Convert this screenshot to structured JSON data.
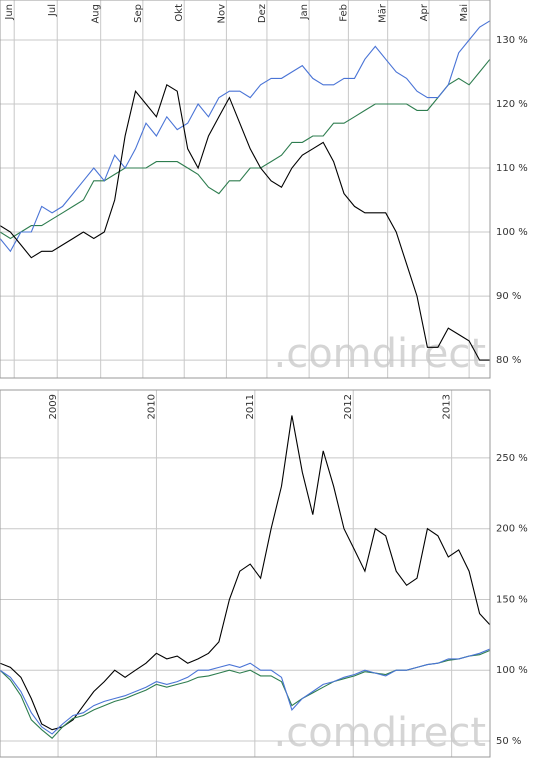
{
  "chart_data": [
    {
      "type": "line",
      "watermark": ".comdirect",
      "grid": true,
      "xlim": [
        0,
        11.73
      ],
      "ylim": [
        77.2,
        136.25
      ],
      "xticks": [
        {
          "value": 0.34,
          "label": "Jun"
        },
        {
          "value": 1.37,
          "label": "Jul"
        },
        {
          "value": 2.41,
          "label": "Aug"
        },
        {
          "value": 3.42,
          "label": "Sep"
        },
        {
          "value": 4.41,
          "label": "Okt"
        },
        {
          "value": 5.42,
          "label": "Nov"
        },
        {
          "value": 6.39,
          "label": "Dez"
        },
        {
          "value": 7.4,
          "label": "Jan"
        },
        {
          "value": 8.34,
          "label": "Feb"
        },
        {
          "value": 9.28,
          "label": "Mär"
        },
        {
          "value": 10.27,
          "label": "Apr"
        },
        {
          "value": 11.23,
          "label": "Mai"
        }
      ],
      "yticks": [
        {
          "value": 80,
          "label": "80 %"
        },
        {
          "value": 90,
          "label": "90 %"
        },
        {
          "value": 100,
          "label": "100 %"
        },
        {
          "value": 110,
          "label": "110 %"
        },
        {
          "value": 120,
          "label": "120 %"
        },
        {
          "value": 130,
          "label": "130 %"
        }
      ],
      "series": [
        {
          "color": "#2e7d4f",
          "values": [
            100,
            99,
            100,
            101,
            101,
            102,
            103,
            104,
            105,
            108,
            108,
            109,
            110,
            110,
            110,
            111,
            111,
            111,
            110,
            109,
            107,
            106,
            108,
            108,
            110,
            110,
            111,
            112,
            114,
            114,
            115,
            115,
            117,
            117,
            118,
            119,
            120,
            120,
            120,
            120,
            119,
            119,
            121,
            123,
            124,
            123,
            125,
            127
          ]
        },
        {
          "color": "#4a74d6",
          "values": [
            99,
            97,
            100,
            100,
            104,
            103,
            104,
            106,
            108,
            110,
            108,
            112,
            110,
            113,
            117,
            115,
            118,
            116,
            117,
            120,
            118,
            121,
            122,
            122,
            121,
            123,
            124,
            124,
            125,
            126,
            124,
            123,
            123,
            124,
            124,
            127,
            129,
            127,
            125,
            124,
            122,
            121,
            121,
            123,
            128,
            130,
            132,
            133
          ]
        },
        {
          "color": "#000000",
          "values": [
            101,
            100,
            98,
            96,
            97,
            97,
            98,
            99,
            100,
            99,
            100,
            105,
            115,
            122,
            120,
            118,
            123,
            122,
            113,
            110,
            115,
            118,
            121,
            117,
            113,
            110,
            108,
            107,
            110,
            112,
            113,
            114,
            111,
            106,
            104,
            103,
            103,
            103,
            100,
            95,
            90,
            82,
            82,
            85,
            84,
            83,
            80,
            80
          ]
        }
      ]
    },
    {
      "type": "line",
      "watermark": ".comdirect",
      "grid": true,
      "xlim": [
        2008.41,
        2013.39
      ],
      "ylim": [
        38.7,
        298
      ],
      "xticks": [
        2009,
        2010,
        2011,
        2012,
        2013
      ],
      "yticks": [
        {
          "value": 50,
          "label": "50 %"
        },
        {
          "value": 100,
          "label": "100 %"
        },
        {
          "value": 150,
          "label": "150 %"
        },
        {
          "value": 200,
          "label": "200 %"
        },
        {
          "value": 250,
          "label": "250 %"
        }
      ],
      "series": [
        {
          "color": "#000000",
          "values": [
            105,
            102,
            95,
            80,
            62,
            58,
            60,
            65,
            75,
            85,
            92,
            100,
            95,
            100,
            105,
            112,
            108,
            110,
            105,
            108,
            112,
            120,
            150,
            170,
            175,
            165,
            200,
            230,
            280,
            240,
            210,
            255,
            230,
            200,
            185,
            170,
            200,
            195,
            170,
            160,
            165,
            200,
            195,
            180,
            185,
            170,
            140,
            132
          ]
        },
        {
          "color": "#2e7d4f",
          "values": [
            100,
            93,
            82,
            65,
            58,
            52,
            60,
            66,
            68,
            72,
            75,
            78,
            80,
            83,
            86,
            90,
            88,
            90,
            92,
            95,
            96,
            98,
            100,
            98,
            100,
            96,
            96,
            92,
            75,
            80,
            84,
            88,
            92,
            94,
            96,
            99,
            98,
            97,
            100,
            100,
            102,
            104,
            105,
            107,
            108,
            110,
            111,
            114
          ]
        },
        {
          "color": "#4a74d6",
          "values": [
            100,
            95,
            85,
            70,
            60,
            55,
            62,
            68,
            70,
            75,
            78,
            80,
            82,
            85,
            88,
            92,
            90,
            92,
            95,
            100,
            100,
            102,
            104,
            102,
            105,
            100,
            100,
            95,
            72,
            80,
            85,
            90,
            92,
            95,
            97,
            100,
            98,
            96,
            100,
            100,
            102,
            104,
            105,
            108,
            108,
            110,
            112,
            115
          ]
        }
      ]
    }
  ]
}
